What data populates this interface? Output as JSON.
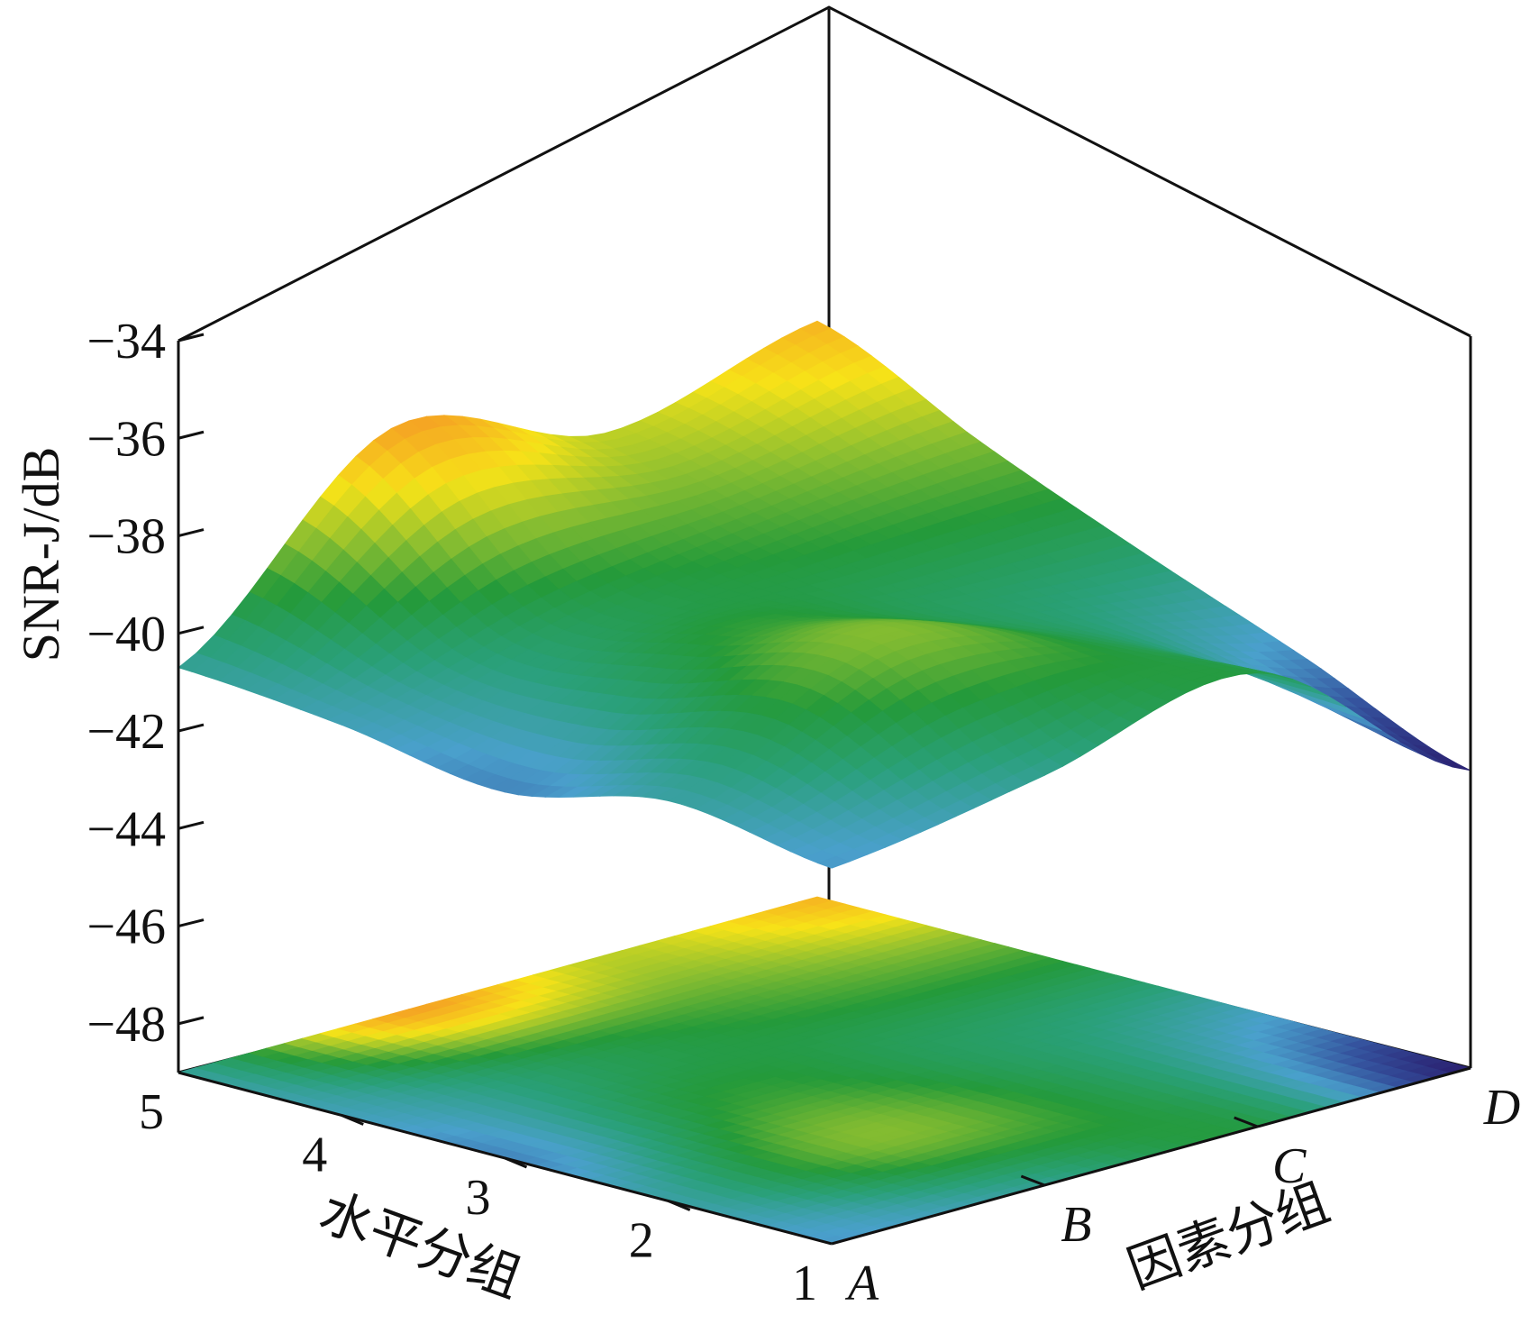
{
  "chart_data": {
    "type": "surface3d",
    "zlabel": "SNR-J/dB",
    "xlabel": "因素分组",
    "ylabel": "水平分组",
    "x_ticks": [
      "A",
      "B",
      "C",
      "D"
    ],
    "y_ticks": [
      "1",
      "2",
      "3",
      "4",
      "5"
    ],
    "z_ticks": [
      "−34",
      "−36",
      "−38",
      "−40",
      "−42",
      "−44",
      "−46",
      "−48"
    ],
    "zlim": [
      -49,
      -34
    ],
    "projected_contour": true,
    "colormap": [
      "#2a1e6e",
      "#34509c",
      "#4aa0cc",
      "#2aa07a",
      "#249a3a",
      "#8cbf30",
      "#f7e318",
      "#f5a623"
    ],
    "series": [
      {
        "factor": "A",
        "values": [
          -41.3,
          -40.8,
          -41.5,
          -41.0,
          -40.7
        ]
      },
      {
        "factor": "B",
        "values": [
          -40.6,
          -38.8,
          -39.5,
          -39.8,
          -37.0
        ]
      },
      {
        "factor": "C",
        "values": [
          -39.7,
          -39.9,
          -40.0,
          -39.2,
          -38.3
        ]
      },
      {
        "factor": "D",
        "values": [
          -42.9,
          -41.5,
          -40.2,
          -38.8,
          -37.2
        ]
      }
    ]
  }
}
